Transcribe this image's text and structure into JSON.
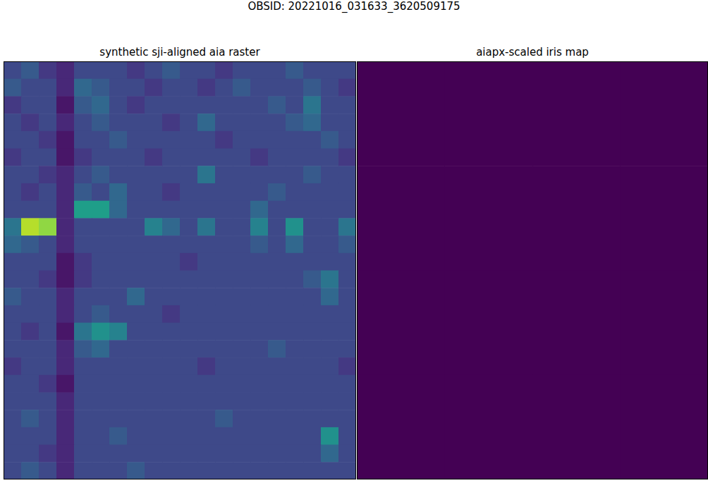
{
  "figure_title": "OBSID: 20221016_031633_3620509175",
  "chart_data": [
    {
      "type": "heatmap",
      "title": "synthetic sji-aligned aia raster",
      "tick_labels": false,
      "zlim": [
        0.1,
        1
      ],
      "cells": [
        [
          0.3,
          0.35,
          0.25,
          0.2,
          0.3,
          0.3,
          0.3,
          0.25,
          0.3,
          0.35,
          0.3,
          0.3,
          0.25,
          0.3,
          0.3,
          0.3,
          0.35,
          0.3,
          0.3,
          0.3
        ],
        [
          0.35,
          0.3,
          0.3,
          0.2,
          0.4,
          0.35,
          0.3,
          0.3,
          0.25,
          0.3,
          0.3,
          0.25,
          0.3,
          0.35,
          0.3,
          0.3,
          0.3,
          0.35,
          0.3,
          0.25
        ],
        [
          0.25,
          0.3,
          0.3,
          0.15,
          0.35,
          0.4,
          0.3,
          0.25,
          0.3,
          0.3,
          0.3,
          0.3,
          0.3,
          0.3,
          0.3,
          0.35,
          0.3,
          0.45,
          0.3,
          0.3
        ],
        [
          0.3,
          0.25,
          0.3,
          0.2,
          0.3,
          0.35,
          0.3,
          0.3,
          0.3,
          0.25,
          0.3,
          0.4,
          0.3,
          0.3,
          0.3,
          0.3,
          0.35,
          0.4,
          0.3,
          0.3
        ],
        [
          0.3,
          0.3,
          0.25,
          0.15,
          0.3,
          0.3,
          0.35,
          0.3,
          0.3,
          0.3,
          0.3,
          0.3,
          0.25,
          0.3,
          0.3,
          0.3,
          0.3,
          0.3,
          0.35,
          0.3
        ],
        [
          0.25,
          0.3,
          0.3,
          0.15,
          0.25,
          0.3,
          0.3,
          0.3,
          0.25,
          0.3,
          0.3,
          0.3,
          0.3,
          0.3,
          0.25,
          0.3,
          0.3,
          0.3,
          0.3,
          0.25
        ],
        [
          0.3,
          0.3,
          0.25,
          0.2,
          0.3,
          0.35,
          0.3,
          0.3,
          0.3,
          0.3,
          0.3,
          0.45,
          0.3,
          0.3,
          0.3,
          0.3,
          0.3,
          0.35,
          0.3,
          0.3
        ],
        [
          0.3,
          0.25,
          0.3,
          0.2,
          0.35,
          0.3,
          0.4,
          0.3,
          0.3,
          0.25,
          0.3,
          0.3,
          0.3,
          0.3,
          0.3,
          0.35,
          0.3,
          0.3,
          0.3,
          0.3
        ],
        [
          0.3,
          0.3,
          0.3,
          0.2,
          0.6,
          0.6,
          0.4,
          0.3,
          0.3,
          0.3,
          0.3,
          0.3,
          0.3,
          0.3,
          0.4,
          0.3,
          0.3,
          0.3,
          0.3,
          0.3
        ],
        [
          0.45,
          0.9,
          0.85,
          0.2,
          0.3,
          0.3,
          0.3,
          0.3,
          0.5,
          0.4,
          0.3,
          0.45,
          0.3,
          0.3,
          0.5,
          0.3,
          0.55,
          0.3,
          0.3,
          0.45
        ],
        [
          0.4,
          0.35,
          0.3,
          0.2,
          0.3,
          0.3,
          0.3,
          0.3,
          0.3,
          0.3,
          0.3,
          0.3,
          0.3,
          0.3,
          0.35,
          0.3,
          0.4,
          0.3,
          0.3,
          0.35
        ],
        [
          0.3,
          0.3,
          0.3,
          0.15,
          0.25,
          0.3,
          0.3,
          0.3,
          0.3,
          0.3,
          0.25,
          0.3,
          0.3,
          0.3,
          0.3,
          0.3,
          0.3,
          0.3,
          0.3,
          0.3
        ],
        [
          0.3,
          0.3,
          0.25,
          0.15,
          0.25,
          0.3,
          0.3,
          0.3,
          0.3,
          0.3,
          0.3,
          0.3,
          0.3,
          0.3,
          0.3,
          0.3,
          0.3,
          0.35,
          0.45,
          0.3
        ],
        [
          0.35,
          0.3,
          0.3,
          0.2,
          0.3,
          0.3,
          0.3,
          0.4,
          0.3,
          0.3,
          0.3,
          0.3,
          0.3,
          0.3,
          0.3,
          0.3,
          0.3,
          0.3,
          0.4,
          0.3
        ],
        [
          0.3,
          0.3,
          0.3,
          0.2,
          0.3,
          0.35,
          0.3,
          0.3,
          0.3,
          0.25,
          0.3,
          0.3,
          0.3,
          0.3,
          0.3,
          0.3,
          0.3,
          0.3,
          0.3,
          0.3
        ],
        [
          0.3,
          0.25,
          0.3,
          0.15,
          0.45,
          0.55,
          0.5,
          0.3,
          0.3,
          0.3,
          0.3,
          0.3,
          0.3,
          0.3,
          0.3,
          0.3,
          0.3,
          0.3,
          0.3,
          0.3
        ],
        [
          0.3,
          0.3,
          0.3,
          0.2,
          0.35,
          0.4,
          0.3,
          0.3,
          0.3,
          0.3,
          0.3,
          0.3,
          0.3,
          0.3,
          0.3,
          0.35,
          0.3,
          0.3,
          0.3,
          0.3
        ],
        [
          0.25,
          0.3,
          0.3,
          0.2,
          0.3,
          0.3,
          0.3,
          0.3,
          0.3,
          0.3,
          0.3,
          0.25,
          0.3,
          0.3,
          0.3,
          0.3,
          0.3,
          0.3,
          0.3,
          0.25
        ],
        [
          0.3,
          0.3,
          0.25,
          0.15,
          0.3,
          0.3,
          0.3,
          0.3,
          0.3,
          0.3,
          0.3,
          0.3,
          0.3,
          0.3,
          0.3,
          0.3,
          0.3,
          0.3,
          0.3,
          0.3
        ],
        [
          0.3,
          0.3,
          0.3,
          0.2,
          0.3,
          0.3,
          0.3,
          0.3,
          0.3,
          0.3,
          0.3,
          0.3,
          0.3,
          0.3,
          0.3,
          0.3,
          0.3,
          0.3,
          0.3,
          0.3
        ],
        [
          0.3,
          0.35,
          0.3,
          0.2,
          0.3,
          0.3,
          0.3,
          0.3,
          0.3,
          0.3,
          0.3,
          0.3,
          0.35,
          0.3,
          0.3,
          0.3,
          0.3,
          0.3,
          0.3,
          0.3
        ],
        [
          0.3,
          0.3,
          0.3,
          0.2,
          0.3,
          0.3,
          0.35,
          0.3,
          0.3,
          0.3,
          0.3,
          0.3,
          0.3,
          0.3,
          0.3,
          0.3,
          0.3,
          0.3,
          0.55,
          0.3
        ],
        [
          0.3,
          0.3,
          0.25,
          0.2,
          0.3,
          0.3,
          0.3,
          0.3,
          0.3,
          0.3,
          0.3,
          0.3,
          0.3,
          0.3,
          0.3,
          0.3,
          0.3,
          0.3,
          0.4,
          0.3
        ],
        [
          0.3,
          0.35,
          0.3,
          0.2,
          0.3,
          0.3,
          0.3,
          0.35,
          0.3,
          0.3,
          0.3,
          0.3,
          0.3,
          0.3,
          0.3,
          0.3,
          0.3,
          0.3,
          0.3,
          0.3
        ]
      ]
    },
    {
      "type": "heatmap",
      "title": "aiapx-scaled iris map",
      "tick_labels": false,
      "zlim": [
        0,
        1
      ],
      "cells": [
        [
          0,
          0,
          0,
          0
        ],
        [
          0,
          0,
          0,
          0
        ],
        [
          0,
          0,
          0,
          0
        ],
        [
          0,
          0,
          0,
          0
        ]
      ]
    }
  ]
}
